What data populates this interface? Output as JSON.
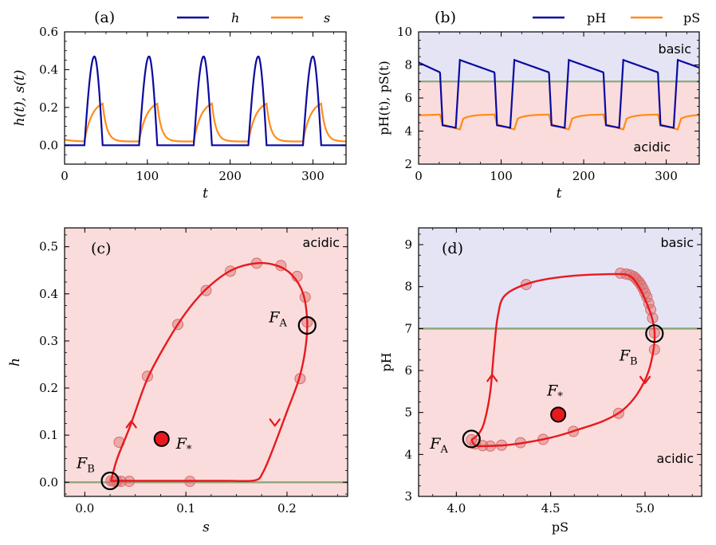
{
  "colors": {
    "h": "#0a0aa0",
    "s": "#ff8c1a",
    "traj": "#e8191e",
    "basic_bg": "#e4e4f5",
    "acidic_bg": "#fadcdc",
    "threshold": "#8fa87a",
    "marker": "#d96b6b"
  },
  "chart_data": [
    {
      "panel": "(a)",
      "type": "line",
      "xlabel": "t",
      "ylabel": "h(t), s(t)",
      "xlim": [
        0,
        340
      ],
      "ylim": [
        -0.1,
        0.6
      ],
      "xticks": [
        "0",
        "100",
        "200",
        "300"
      ],
      "yticks": [
        "0.0",
        "0.2",
        "0.4",
        "0.6"
      ],
      "legend": [
        "h",
        "s"
      ],
      "legend_position": "top",
      "period": 66,
      "first_peak_t": 36,
      "series": [
        {
          "name": "h",
          "min": 0.0,
          "max": 0.47
        },
        {
          "name": "s",
          "min": 0.02,
          "max": 0.22
        }
      ]
    },
    {
      "panel": "(b)",
      "type": "line",
      "xlabel": "t",
      "ylabel": "pH(t), pS(t)",
      "xlim": [
        0,
        340
      ],
      "ylim": [
        2,
        10
      ],
      "xticks": [
        "0",
        "100",
        "200",
        "300"
      ],
      "yticks": [
        "2",
        "4",
        "6",
        "8",
        "10"
      ],
      "legend": [
        "pH",
        "pS"
      ],
      "legend_position": "top",
      "threshold": 7,
      "regions": [
        "basic",
        "acidic"
      ],
      "series": [
        {
          "name": "pH",
          "min": 4.2,
          "max": 8.3
        },
        {
          "name": "pS",
          "min": 4.1,
          "max": 5.05
        }
      ]
    },
    {
      "panel": "(c)",
      "type": "line",
      "xlabel": "s",
      "ylabel": "h",
      "xlim": [
        -0.02,
        0.26
      ],
      "ylim": [
        -0.03,
        0.54
      ],
      "xticks": [
        "0.0",
        "0.1",
        "0.2"
      ],
      "yticks": [
        "0.0",
        "0.1",
        "0.2",
        "0.3",
        "0.4",
        "0.5"
      ],
      "region": "acidic",
      "threshold": 0,
      "trajectory": [
        [
          0.026,
          0.003
        ],
        [
          0.032,
          0.05
        ],
        [
          0.045,
          0.12
        ],
        [
          0.062,
          0.22
        ],
        [
          0.082,
          0.3
        ],
        [
          0.1,
          0.36
        ],
        [
          0.12,
          0.41
        ],
        [
          0.145,
          0.45
        ],
        [
          0.17,
          0.465
        ],
        [
          0.19,
          0.46
        ],
        [
          0.205,
          0.44
        ],
        [
          0.216,
          0.4
        ],
        [
          0.22,
          0.34
        ],
        [
          0.218,
          0.28
        ],
        [
          0.212,
          0.22
        ],
        [
          0.2,
          0.15
        ],
        [
          0.186,
          0.07
        ],
        [
          0.176,
          0.02
        ],
        [
          0.168,
          0.004
        ],
        [
          0.14,
          0.003
        ],
        [
          0.1,
          0.003
        ],
        [
          0.06,
          0.003
        ],
        [
          0.03,
          0.003
        ],
        [
          0.026,
          0.003
        ]
      ],
      "markers": [
        [
          0.026,
          0.003
        ],
        [
          0.029,
          0.002
        ],
        [
          0.032,
          0.002
        ],
        [
          0.036,
          0.002
        ],
        [
          0.044,
          0.002
        ],
        [
          0.104,
          0.002
        ],
        [
          0.034,
          0.085
        ],
        [
          0.062,
          0.225
        ],
        [
          0.092,
          0.335
        ],
        [
          0.12,
          0.407
        ],
        [
          0.144,
          0.448
        ],
        [
          0.17,
          0.465
        ],
        [
          0.194,
          0.46
        ],
        [
          0.21,
          0.437
        ],
        [
          0.218,
          0.393
        ],
        [
          0.22,
          0.34
        ],
        [
          0.213,
          0.22
        ]
      ],
      "arrows": [
        [
          0.046,
          0.13,
          "up"
        ],
        [
          0.188,
          0.12,
          "down"
        ]
      ],
      "fixed_points": [
        {
          "label": "F_A",
          "sub": "A",
          "x": 0.22,
          "y": 0.333,
          "kind": "open"
        },
        {
          "label": "F_B",
          "sub": "B",
          "x": 0.025,
          "y": 0.003,
          "kind": "open"
        },
        {
          "label": "F_*",
          "sub": "*",
          "x": 0.076,
          "y": 0.092,
          "kind": "filled"
        }
      ]
    },
    {
      "panel": "(d)",
      "type": "line",
      "xlabel": "pS",
      "ylabel": "pH",
      "xlim": [
        3.8,
        5.3
      ],
      "ylim": [
        3,
        9.4
      ],
      "xticks": [
        "4.0",
        "4.5",
        "5.0"
      ],
      "yticks": [
        "3",
        "4",
        "5",
        "6",
        "7",
        "8",
        "9"
      ],
      "threshold": 7,
      "regions": [
        "basic",
        "acidic"
      ],
      "trajectory": [
        [
          4.08,
          4.35
        ],
        [
          4.1,
          4.22
        ],
        [
          4.15,
          4.2
        ],
        [
          4.3,
          4.24
        ],
        [
          4.5,
          4.4
        ],
        [
          4.65,
          4.6
        ],
        [
          4.78,
          4.8
        ],
        [
          4.88,
          5.05
        ],
        [
          4.96,
          5.45
        ],
        [
          5.02,
          6.0
        ],
        [
          5.05,
          6.7
        ],
        [
          5.04,
          7.2
        ],
        [
          5.0,
          7.7
        ],
        [
          4.96,
          8.05
        ],
        [
          4.92,
          8.25
        ],
        [
          4.85,
          8.3
        ],
        [
          4.6,
          8.25
        ],
        [
          4.4,
          8.1
        ],
        [
          4.26,
          7.8
        ],
        [
          4.22,
          7.3
        ],
        [
          4.2,
          6.5
        ],
        [
          4.18,
          5.5
        ],
        [
          4.15,
          4.8
        ],
        [
          4.12,
          4.5
        ],
        [
          4.08,
          4.35
        ]
      ],
      "markers": [
        [
          4.08,
          4.35
        ],
        [
          4.1,
          4.25
        ],
        [
          4.14,
          4.21
        ],
        [
          4.18,
          4.2
        ],
        [
          4.24,
          4.22
        ],
        [
          4.34,
          4.28
        ],
        [
          4.46,
          4.36
        ],
        [
          4.62,
          4.55
        ],
        [
          4.86,
          4.98
        ],
        [
          5.05,
          6.5
        ],
        [
          5.05,
          6.9
        ],
        [
          5.04,
          7.25
        ],
        [
          5.03,
          7.45
        ],
        [
          5.02,
          7.6
        ],
        [
          5.01,
          7.75
        ],
        [
          5.0,
          7.85
        ],
        [
          4.99,
          7.95
        ],
        [
          4.98,
          8.03
        ],
        [
          4.97,
          8.1
        ],
        [
          4.96,
          8.15
        ],
        [
          4.95,
          8.2
        ],
        [
          4.94,
          8.24
        ],
        [
          4.92,
          8.28
        ],
        [
          4.9,
          8.3
        ],
        [
          4.87,
          8.32
        ],
        [
          4.37,
          8.05
        ]
      ],
      "arrows": [
        [
          4.19,
          5.9,
          "up"
        ],
        [
          5.0,
          5.7,
          "down"
        ]
      ],
      "fixed_points": [
        {
          "label": "F_A",
          "sub": "A",
          "x": 4.08,
          "y": 4.37,
          "kind": "open"
        },
        {
          "label": "F_B",
          "sub": "B",
          "x": 5.05,
          "y": 6.88,
          "kind": "open"
        },
        {
          "label": "F_*",
          "sub": "*",
          "x": 4.54,
          "y": 4.95,
          "kind": "filled"
        }
      ]
    }
  ]
}
